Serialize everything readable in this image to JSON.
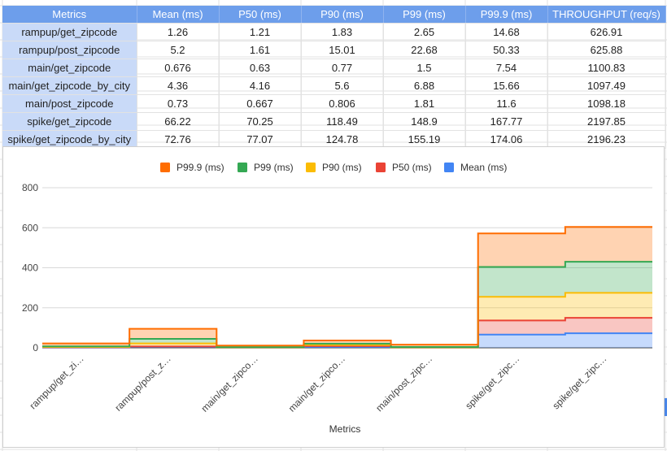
{
  "table": {
    "headers": [
      "Metrics",
      "Mean (ms)",
      "P50 (ms)",
      "P90 (ms)",
      "P99 (ms)",
      "P99.9 (ms)",
      "THROUGHPUT (req/s)"
    ],
    "rows": [
      [
        "rampup/get_zipcode",
        "1.26",
        "1.21",
        "1.83",
        "2.65",
        "14.68",
        "626.91"
      ],
      [
        "rampup/post_zipcode",
        "5.2",
        "1.61",
        "15.01",
        "22.68",
        "50.33",
        "625.88"
      ],
      [
        "main/get_zipcode",
        "0.676",
        "0.63",
        "0.77",
        "1.5",
        "7.54",
        "1100.83"
      ],
      [
        "main/get_zipcode_by_city",
        "4.36",
        "4.16",
        "5.6",
        "6.88",
        "15.66",
        "1097.49"
      ],
      [
        "main/post_zipcode",
        "0.73",
        "0.667",
        "0.806",
        "1.81",
        "11.6",
        "1098.18"
      ],
      [
        "spike/get_zipcode",
        "66.22",
        "70.25",
        "118.49",
        "148.9",
        "167.77",
        "2197.85"
      ],
      [
        "spike/get_zipcode_by_city",
        "72.76",
        "77.07",
        "124.78",
        "155.19",
        "174.06",
        "2196.23"
      ]
    ]
  },
  "chart_data": {
    "type": "area",
    "stacked": true,
    "stepped": true,
    "xlabel": "Metrics",
    "ylabel": "",
    "ylim": [
      0,
      800
    ],
    "yticks": [
      "0",
      "200",
      "400",
      "600",
      "800"
    ],
    "grid": true,
    "legend_position": "top",
    "categories": [
      "rampup/get_zi…",
      "rampup/post_z…",
      "main/get_zipco…",
      "main/get_zipco…",
      "main/post_zipc…",
      "spike/get_zipc…",
      "spike/get_zipc…"
    ],
    "series": [
      {
        "name": "Mean (ms)",
        "color": "#4285f4",
        "values": [
          1.26,
          5.2,
          0.676,
          4.36,
          0.73,
          66.22,
          72.76
        ]
      },
      {
        "name": "P50 (ms)",
        "color": "#ea4335",
        "values": [
          1.21,
          1.61,
          0.63,
          4.16,
          0.667,
          70.25,
          77.07
        ]
      },
      {
        "name": "P90 (ms)",
        "color": "#fbbc04",
        "values": [
          1.83,
          15.01,
          0.77,
          5.6,
          0.806,
          118.49,
          124.78
        ]
      },
      {
        "name": "P99 (ms)",
        "color": "#34a853",
        "values": [
          2.65,
          22.68,
          1.5,
          6.88,
          1.81,
          148.9,
          155.19
        ]
      },
      {
        "name": "P99.9 (ms)",
        "color": "#ff6d01",
        "values": [
          14.68,
          50.33,
          7.54,
          15.66,
          11.6,
          167.77,
          174.06
        ]
      }
    ],
    "legend_order": [
      "P99.9 (ms)",
      "P99 (ms)",
      "P90 (ms)",
      "P50 (ms)",
      "Mean (ms)"
    ]
  }
}
